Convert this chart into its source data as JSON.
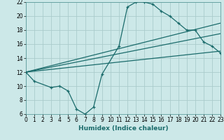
{
  "xlabel": "Humidex (Indice chaleur)",
  "ylabel": "",
  "bg_color": "#cce8e8",
  "grid_color": "#aacccc",
  "line_color": "#1a6b6b",
  "xlim": [
    0,
    23
  ],
  "ylim": [
    6,
    22
  ],
  "xticks": [
    0,
    1,
    2,
    3,
    4,
    5,
    6,
    7,
    8,
    9,
    10,
    11,
    12,
    13,
    14,
    15,
    16,
    17,
    18,
    19,
    20,
    21,
    22,
    23
  ],
  "yticks": [
    6,
    8,
    10,
    12,
    14,
    16,
    18,
    20,
    22
  ],
  "curve1_x": [
    0,
    1,
    3,
    4,
    5,
    6,
    7,
    8,
    9,
    11,
    12,
    13,
    14,
    15,
    16,
    17,
    18,
    19,
    20,
    21,
    22,
    23
  ],
  "curve1_y": [
    12,
    10.7,
    9.8,
    10,
    9.3,
    6.7,
    6.0,
    7.0,
    11.7,
    15.7,
    21.3,
    22.0,
    22.0,
    21.7,
    20.7,
    20.0,
    19.0,
    18.0,
    18.0,
    16.3,
    15.7,
    14.7
  ],
  "line2_x": [
    0,
    23
  ],
  "line2_y": [
    12.0,
    19.0
  ],
  "line3_x": [
    0,
    23
  ],
  "line3_y": [
    12.0,
    17.5
  ],
  "line4_x": [
    0,
    23
  ],
  "line4_y": [
    12.0,
    15.0
  ],
  "tick_fontsize": 5.5,
  "xlabel_fontsize": 6.5,
  "lw": 0.9
}
